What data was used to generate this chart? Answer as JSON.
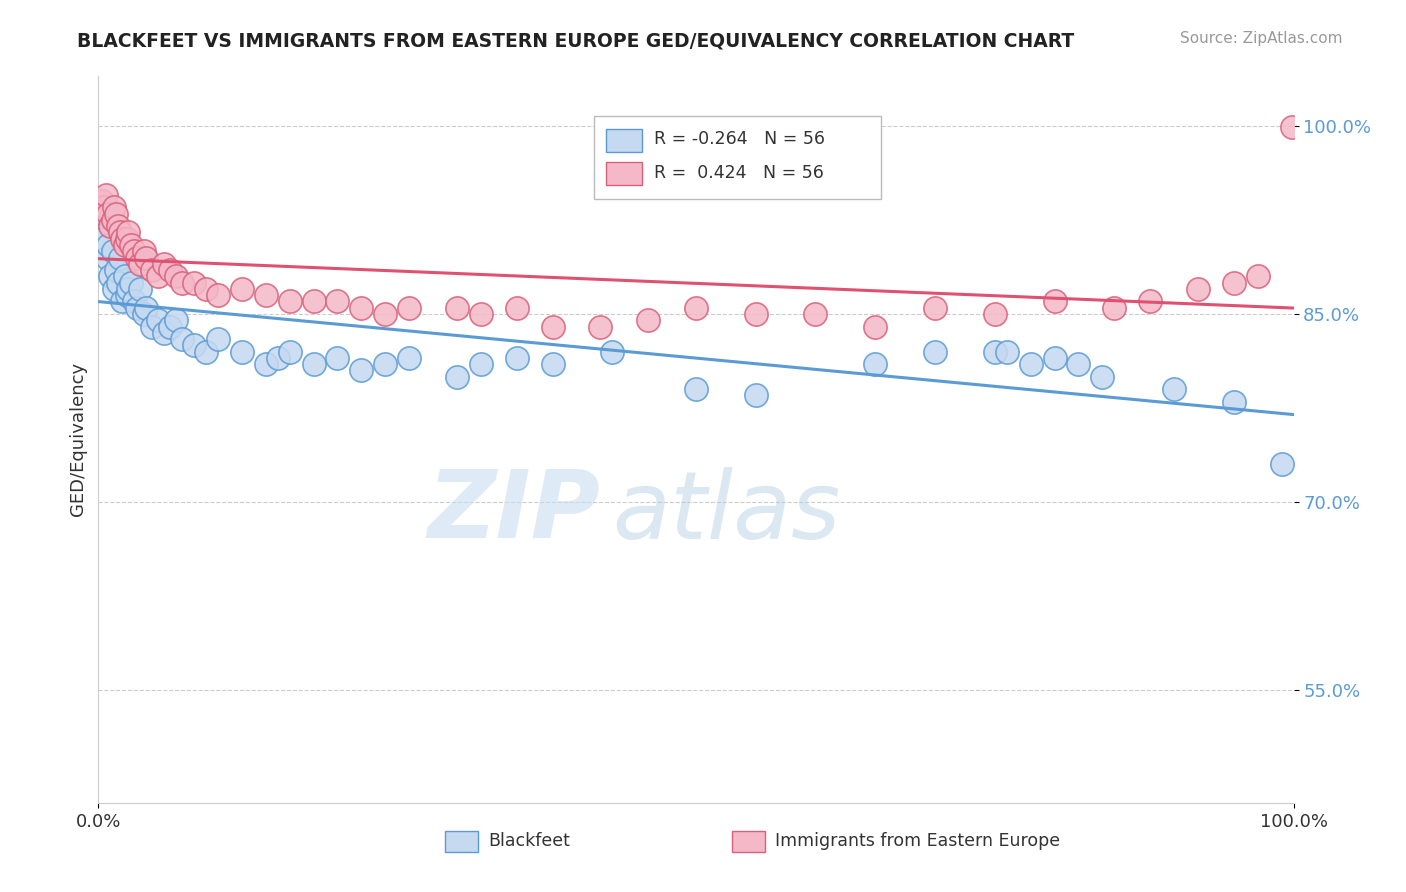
{
  "title": "BLACKFEET VS IMMIGRANTS FROM EASTERN EUROPE GED/EQUIVALENCY CORRELATION CHART",
  "source": "Source: ZipAtlas.com",
  "ylabel": "GED/Equivalency",
  "legend_label_1": "Blackfeet",
  "legend_label_2": "Immigrants from Eastern Europe",
  "r1": -0.264,
  "n1": 56,
  "r2": 0.424,
  "n2": 56,
  "color1_face": "#c5d9f0",
  "color1_edge": "#5b9bd5",
  "color2_face": "#f4b8c8",
  "color2_edge": "#d9607a",
  "line_color1": "#5b9bd5",
  "line_color2": "#e05070",
  "xmin": 0.0,
  "xmax": 1.0,
  "ymin": 0.46,
  "ymax": 1.04,
  "yticks": [
    0.55,
    0.7,
    0.85,
    1.0
  ],
  "ytick_labels": [
    "55.0%",
    "70.0%",
    "85.0%",
    "100.0%"
  ],
  "xtick_labels": [
    "0.0%",
    "100.0%"
  ],
  "watermark_zip": "ZIP",
  "watermark_atlas": "atlas",
  "background_color": "#ffffff",
  "blue_x": [
    0.003,
    0.005,
    0.007,
    0.008,
    0.01,
    0.012,
    0.013,
    0.015,
    0.016,
    0.018,
    0.02,
    0.022,
    0.024,
    0.025,
    0.027,
    0.03,
    0.032,
    0.035,
    0.038,
    0.04,
    0.045,
    0.05,
    0.055,
    0.06,
    0.065,
    0.07,
    0.08,
    0.09,
    0.1,
    0.12,
    0.14,
    0.15,
    0.16,
    0.18,
    0.2,
    0.22,
    0.24,
    0.26,
    0.3,
    0.32,
    0.35,
    0.38,
    0.43,
    0.5,
    0.55,
    0.65,
    0.7,
    0.75,
    0.76,
    0.78,
    0.8,
    0.82,
    0.84,
    0.9,
    0.95,
    0.99
  ],
  "blue_y": [
    0.91,
    0.93,
    0.895,
    0.905,
    0.88,
    0.9,
    0.87,
    0.885,
    0.875,
    0.895,
    0.86,
    0.88,
    0.865,
    0.87,
    0.875,
    0.86,
    0.855,
    0.87,
    0.85,
    0.855,
    0.84,
    0.845,
    0.835,
    0.84,
    0.845,
    0.83,
    0.825,
    0.82,
    0.83,
    0.82,
    0.81,
    0.815,
    0.82,
    0.81,
    0.815,
    0.805,
    0.81,
    0.815,
    0.8,
    0.81,
    0.815,
    0.81,
    0.82,
    0.79,
    0.785,
    0.81,
    0.82,
    0.82,
    0.82,
    0.81,
    0.815,
    0.81,
    0.8,
    0.79,
    0.78,
    0.73
  ],
  "pink_x": [
    0.003,
    0.005,
    0.006,
    0.008,
    0.01,
    0.012,
    0.013,
    0.015,
    0.016,
    0.018,
    0.02,
    0.022,
    0.024,
    0.025,
    0.027,
    0.03,
    0.032,
    0.035,
    0.038,
    0.04,
    0.045,
    0.05,
    0.055,
    0.06,
    0.065,
    0.07,
    0.08,
    0.09,
    0.1,
    0.12,
    0.14,
    0.16,
    0.18,
    0.2,
    0.22,
    0.24,
    0.26,
    0.3,
    0.32,
    0.35,
    0.38,
    0.42,
    0.46,
    0.5,
    0.55,
    0.6,
    0.65,
    0.7,
    0.75,
    0.8,
    0.85,
    0.88,
    0.92,
    0.95,
    0.97,
    0.999
  ],
  "pink_y": [
    0.94,
    0.935,
    0.945,
    0.93,
    0.92,
    0.925,
    0.935,
    0.93,
    0.92,
    0.915,
    0.91,
    0.905,
    0.91,
    0.915,
    0.905,
    0.9,
    0.895,
    0.89,
    0.9,
    0.895,
    0.885,
    0.88,
    0.89,
    0.885,
    0.88,
    0.875,
    0.875,
    0.87,
    0.865,
    0.87,
    0.865,
    0.86,
    0.86,
    0.86,
    0.855,
    0.85,
    0.855,
    0.855,
    0.85,
    0.855,
    0.84,
    0.84,
    0.845,
    0.855,
    0.85,
    0.85,
    0.84,
    0.855,
    0.85,
    0.86,
    0.855,
    0.86,
    0.87,
    0.875,
    0.88,
    0.999
  ]
}
